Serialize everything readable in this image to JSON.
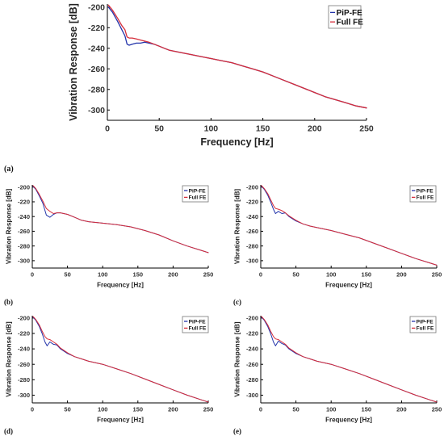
{
  "colors": {
    "pip_fe": "#2233aa",
    "full_fe": "#d62d3a"
  },
  "chart_data": [
    {
      "panel": "(a)",
      "type": "line",
      "xlabel": "Frequency [Hz]",
      "ylabel": "Vibration Response [dB]",
      "xlim": [
        0,
        250
      ],
      "ylim": [
        -310,
        -197
      ],
      "xticks": [
        0,
        50,
        100,
        150,
        200,
        250
      ],
      "yticks": [
        -200,
        -220,
        -240,
        -260,
        -280,
        -300
      ],
      "legend": "top-right",
      "grid": false,
      "series": [
        {
          "name": "PiP-FE",
          "x": [
            1,
            5,
            10,
            14,
            17,
            19,
            21,
            24,
            28,
            32,
            36,
            40,
            45,
            50,
            55,
            60,
            70,
            80,
            90,
            100,
            110,
            120,
            130,
            140,
            150,
            160,
            170,
            180,
            190,
            200,
            210,
            220,
            230,
            240,
            250
          ],
          "y": [
            -200,
            -205,
            -214,
            -222,
            -228,
            -236,
            -237,
            -236,
            -235,
            -235,
            -234,
            -235,
            -236,
            -238,
            -240,
            -242,
            -244,
            -246,
            -248,
            -250,
            -252,
            -254,
            -257,
            -260,
            -263,
            -267,
            -271,
            -275,
            -279,
            -283,
            -287,
            -290,
            -293,
            -296,
            -298
          ]
        },
        {
          "name": "Full FE",
          "x": [
            1,
            5,
            10,
            14,
            17,
            19,
            21,
            24,
            28,
            32,
            36,
            40,
            45,
            50,
            55,
            60,
            70,
            80,
            90,
            100,
            110,
            120,
            130,
            140,
            150,
            160,
            170,
            180,
            190,
            200,
            210,
            220,
            230,
            240,
            250
          ],
          "y": [
            -198,
            -203,
            -211,
            -218,
            -222,
            -229,
            -230,
            -230,
            -231,
            -232,
            -233,
            -234,
            -236,
            -238,
            -240,
            -242,
            -244,
            -246,
            -248,
            -250,
            -252,
            -254,
            -257,
            -260,
            -263,
            -267,
            -271,
            -275,
            -279,
            -283,
            -287,
            -290,
            -293,
            -296,
            -298
          ]
        }
      ]
    },
    {
      "panel": "(b)",
      "type": "line",
      "xlabel": "Frequency [Hz]",
      "ylabel": "Vibration Response [dB]",
      "xlim": [
        0,
        250
      ],
      "ylim": [
        -310,
        -197
      ],
      "xticks": [
        0,
        50,
        100,
        150,
        200,
        250
      ],
      "yticks": [
        -200,
        -220,
        -240,
        -260,
        -280,
        -300
      ],
      "legend": "top-right",
      "grid": false,
      "series": [
        {
          "name": "PiP-FE",
          "x": [
            1,
            5,
            10,
            15,
            20,
            25,
            30,
            35,
            40,
            50,
            60,
            70,
            80,
            100,
            120,
            140,
            160,
            180,
            200,
            220,
            240,
            250
          ],
          "y": [
            -199,
            -203,
            -212,
            -222,
            -238,
            -241,
            -237,
            -235,
            -235,
            -237,
            -241,
            -245,
            -247,
            -249,
            -251,
            -254,
            -259,
            -265,
            -273,
            -280,
            -286,
            -289
          ]
        },
        {
          "name": "Full FE",
          "x": [
            1,
            5,
            10,
            15,
            20,
            25,
            30,
            35,
            40,
            50,
            60,
            70,
            80,
            100,
            120,
            140,
            160,
            180,
            200,
            220,
            240,
            250
          ],
          "y": [
            -198,
            -202,
            -210,
            -219,
            -229,
            -233,
            -236,
            -235,
            -235,
            -237,
            -241,
            -245,
            -247,
            -249,
            -251,
            -254,
            -259,
            -265,
            -273,
            -280,
            -286,
            -289
          ]
        }
      ]
    },
    {
      "panel": "(c)",
      "type": "line",
      "xlabel": "Frequency [Hz]",
      "ylabel": "Vibration Response [dB]",
      "xlim": [
        0,
        250
      ],
      "ylim": [
        -310,
        -197
      ],
      "xticks": [
        0,
        50,
        100,
        150,
        200,
        250
      ],
      "yticks": [
        -200,
        -220,
        -240,
        -260,
        -280,
        -300
      ],
      "legend": "top-right",
      "grid": false,
      "series": [
        {
          "name": "PiP-FE",
          "x": [
            1,
            5,
            10,
            14,
            18,
            21,
            25,
            30,
            35,
            40,
            50,
            60,
            70,
            80,
            100,
            120,
            140,
            160,
            180,
            200,
            220,
            240,
            250
          ],
          "y": [
            -199,
            -203,
            -211,
            -220,
            -230,
            -236,
            -233,
            -236,
            -235,
            -240,
            -246,
            -250,
            -253,
            -255,
            -259,
            -264,
            -269,
            -276,
            -283,
            -290,
            -297,
            -303,
            -306
          ]
        },
        {
          "name": "Full FE",
          "x": [
            1,
            5,
            10,
            14,
            18,
            21,
            25,
            30,
            35,
            40,
            50,
            60,
            70,
            80,
            100,
            120,
            140,
            160,
            180,
            200,
            220,
            240,
            250
          ],
          "y": [
            -198,
            -202,
            -209,
            -217,
            -225,
            -229,
            -230,
            -232,
            -235,
            -239,
            -245,
            -250,
            -253,
            -255,
            -259,
            -264,
            -269,
            -276,
            -283,
            -290,
            -297,
            -303,
            -306
          ]
        }
      ]
    },
    {
      "panel": "(d)",
      "type": "line",
      "xlabel": "Frequency [Hz]",
      "ylabel": "Vibration Response [dB]",
      "xlim": [
        0,
        250
      ],
      "ylim": [
        -310,
        -197
      ],
      "xticks": [
        0,
        50,
        100,
        150,
        200,
        250
      ],
      "yticks": [
        -200,
        -220,
        -240,
        -260,
        -280,
        -300
      ],
      "legend": "top-right",
      "grid": false,
      "series": [
        {
          "name": "PiP-FE",
          "x": [
            1,
            5,
            10,
            14,
            18,
            21,
            25,
            30,
            35,
            40,
            50,
            60,
            70,
            80,
            100,
            120,
            140,
            160,
            180,
            200,
            220,
            240,
            250
          ],
          "y": [
            -199,
            -203,
            -211,
            -220,
            -231,
            -236,
            -231,
            -234,
            -235,
            -240,
            -246,
            -250,
            -253,
            -256,
            -260,
            -266,
            -272,
            -279,
            -286,
            -293,
            -300,
            -306,
            -309
          ]
        },
        {
          "name": "Full FE",
          "x": [
            1,
            5,
            10,
            14,
            18,
            21,
            25,
            30,
            35,
            40,
            50,
            60,
            70,
            80,
            100,
            120,
            140,
            160,
            180,
            200,
            220,
            240,
            250
          ],
          "y": [
            -198,
            -202,
            -209,
            -217,
            -224,
            -227,
            -228,
            -231,
            -234,
            -239,
            -245,
            -250,
            -253,
            -256,
            -260,
            -266,
            -272,
            -279,
            -286,
            -293,
            -300,
            -306,
            -309
          ]
        }
      ]
    },
    {
      "panel": "(e)",
      "type": "line",
      "xlabel": "Frequency [Hz]",
      "ylabel": "Vibration Response [dB]",
      "xlim": [
        0,
        250
      ],
      "ylim": [
        -310,
        -197
      ],
      "xticks": [
        0,
        50,
        100,
        150,
        200,
        250
      ],
      "yticks": [
        -200,
        -220,
        -240,
        -260,
        -280,
        -300
      ],
      "legend": "top-right",
      "grid": false,
      "series": [
        {
          "name": "PiP-FE",
          "x": [
            1,
            5,
            10,
            14,
            18,
            21,
            25,
            30,
            35,
            40,
            50,
            60,
            70,
            80,
            100,
            120,
            140,
            160,
            180,
            200,
            220,
            240,
            250
          ],
          "y": [
            -199,
            -203,
            -211,
            -220,
            -231,
            -236,
            -230,
            -233,
            -235,
            -240,
            -246,
            -250,
            -253,
            -256,
            -260,
            -266,
            -272,
            -279,
            -286,
            -293,
            -300,
            -306,
            -309
          ]
        },
        {
          "name": "Full FE",
          "x": [
            1,
            5,
            10,
            14,
            18,
            21,
            25,
            30,
            35,
            40,
            50,
            60,
            70,
            80,
            100,
            120,
            140,
            160,
            180,
            200,
            220,
            240,
            250
          ],
          "y": [
            -198,
            -202,
            -209,
            -217,
            -224,
            -227,
            -228,
            -231,
            -234,
            -239,
            -245,
            -250,
            -253,
            -256,
            -260,
            -266,
            -272,
            -279,
            -286,
            -293,
            -300,
            -306,
            -309
          ]
        }
      ]
    }
  ]
}
